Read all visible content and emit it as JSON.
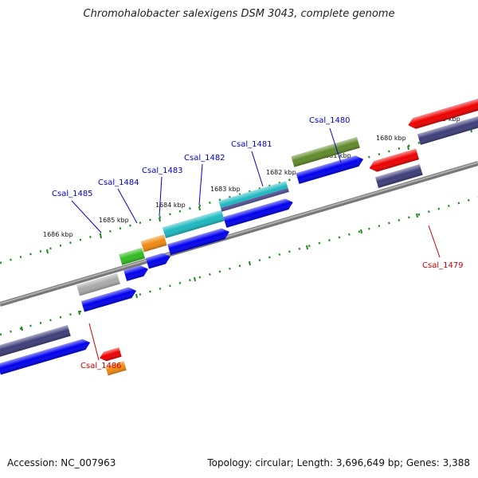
{
  "title": "Chromohalobacter salexigens DSM 3043, complete genome",
  "footer": {
    "accession": "Accession: NC_007963",
    "summary": "Topology: circular; Length: 3,696,649 bp; Genes: 3,388"
  },
  "scale_labels": [
    "1679 kbp",
    "1680 kbp",
    "1681 kbp",
    "1682 kbp",
    "1683 kbp",
    "1684 kbp",
    "1685 kbp",
    "1686 kbp"
  ],
  "gene_labels": {
    "csal_1479": "Csal_1479",
    "csal_1480": "Csal_1480",
    "csal_1481": "Csal_1481",
    "csal_1482": "Csal_1482",
    "csal_1483": "Csal_1483",
    "csal_1484": "Csal_1484",
    "csal_1485": "Csal_1485",
    "csal_1486": "Csal_1486"
  },
  "colors": {
    "forward_label": "#0000cc",
    "reverse_label": "#cc0000",
    "cds": "#0000ee",
    "red": "#ee0000",
    "purple": "#3d3d7a",
    "gray": "#aaaaaa",
    "green": "#33bb22",
    "orange": "#f08a10",
    "cyan": "#1cb8c0",
    "olive": "#5f8a2a",
    "tick": "#228822",
    "backbone": "#888888"
  }
}
